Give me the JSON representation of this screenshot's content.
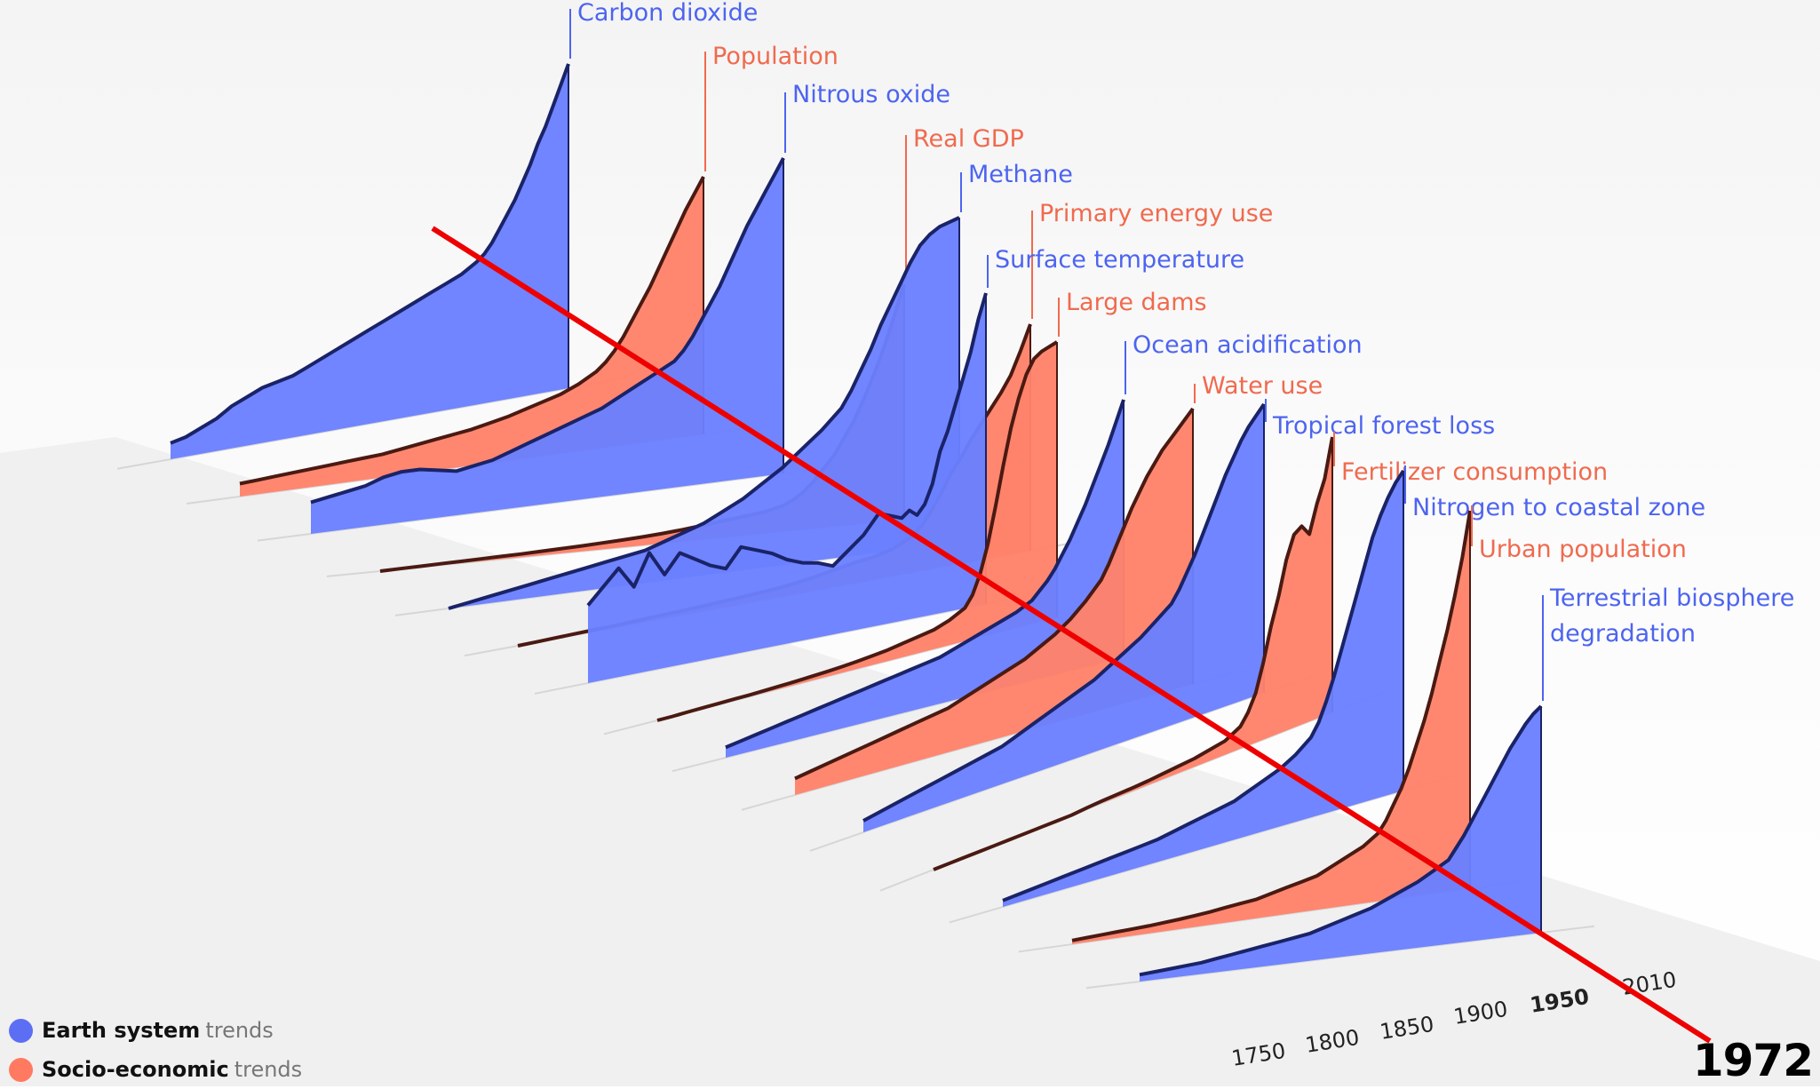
{
  "colors": {
    "earth_system": "#6a80ff",
    "socio_economic": "#ff826a",
    "earth_label": "#4d64f0",
    "socio_label": "#f06a4e",
    "annotation_line": "#ee0000"
  },
  "legend": {
    "earth": {
      "strong": "Earth system",
      "light": "trends"
    },
    "socio": {
      "strong": "Socio-economic",
      "light": "trends"
    }
  },
  "annotation": {
    "year_label": "1972"
  },
  "chart_data": {
    "type": "area",
    "title": "",
    "xlabel": "",
    "ylabel": "",
    "xlim": [
      1750,
      2010
    ],
    "x_ticks": [
      "1750",
      "1800",
      "1850",
      "1900",
      "1950",
      "2010"
    ],
    "highlighted_tick": "1950",
    "annotation_line_year": 1972,
    "x": [
      1750,
      1760,
      1770,
      1780,
      1790,
      1800,
      1810,
      1820,
      1830,
      1840,
      1850,
      1860,
      1870,
      1880,
      1890,
      1900,
      1910,
      1920,
      1930,
      1940,
      1950,
      1955,
      1960,
      1965,
      1970,
      1975,
      1980,
      1985,
      1990,
      1995,
      2000,
      2005,
      2010
    ],
    "series": [
      {
        "name": "Carbon dioxide",
        "group": "earth",
        "values": [
          0.05,
          0.06,
          0.08,
          0.1,
          0.13,
          0.15,
          0.17,
          0.18,
          0.19,
          0.21,
          0.23,
          0.25,
          0.27,
          0.29,
          0.31,
          0.33,
          0.35,
          0.37,
          0.39,
          0.41,
          0.44,
          0.46,
          0.49,
          0.53,
          0.57,
          0.61,
          0.66,
          0.71,
          0.77,
          0.82,
          0.88,
          0.94,
          1.0
        ]
      },
      {
        "name": "Population",
        "group": "socio",
        "values": [
          0.05,
          0.055,
          0.06,
          0.065,
          0.07,
          0.075,
          0.08,
          0.085,
          0.09,
          0.1,
          0.11,
          0.12,
          0.13,
          0.14,
          0.155,
          0.17,
          0.19,
          0.21,
          0.23,
          0.26,
          0.3,
          0.33,
          0.37,
          0.42,
          0.48,
          0.54,
          0.6,
          0.67,
          0.74,
          0.81,
          0.88,
          0.94,
          1.0
        ]
      },
      {
        "name": "Nitrous oxide",
        "group": "earth",
        "values": [
          0.1,
          0.11,
          0.12,
          0.13,
          0.15,
          0.16,
          0.16,
          0.15,
          0.14,
          0.15,
          0.16,
          0.18,
          0.2,
          0.22,
          0.24,
          0.26,
          0.28,
          0.31,
          0.34,
          0.37,
          0.4,
          0.43,
          0.47,
          0.52,
          0.57,
          0.62,
          0.68,
          0.74,
          0.8,
          0.85,
          0.9,
          0.95,
          1.0
        ]
      },
      {
        "name": "Real GDP",
        "group": "socio",
        "values": [
          0.0,
          0.002,
          0.004,
          0.006,
          0.008,
          0.01,
          0.012,
          0.014,
          0.017,
          0.02,
          0.023,
          0.027,
          0.031,
          0.036,
          0.042,
          0.05,
          0.06,
          0.07,
          0.08,
          0.09,
          0.11,
          0.13,
          0.16,
          0.2,
          0.25,
          0.3,
          0.37,
          0.44,
          0.53,
          0.63,
          0.74,
          0.87,
          1.0
        ]
      },
      {
        "name": "Methane",
        "group": "earth",
        "values": [
          0.0,
          0.01,
          0.02,
          0.03,
          0.04,
          0.05,
          0.06,
          0.07,
          0.08,
          0.09,
          0.1,
          0.12,
          0.14,
          0.16,
          0.19,
          0.22,
          0.26,
          0.3,
          0.35,
          0.4,
          0.46,
          0.51,
          0.57,
          0.63,
          0.7,
          0.76,
          0.82,
          0.88,
          0.93,
          0.96,
          0.98,
          0.99,
          1.0
        ]
      },
      {
        "name": "Primary energy use",
        "group": "socio",
        "values": [
          0.0,
          0.002,
          0.004,
          0.006,
          0.008,
          0.01,
          0.013,
          0.016,
          0.019,
          0.022,
          0.026,
          0.03,
          0.035,
          0.04,
          0.048,
          0.06,
          0.075,
          0.09,
          0.1,
          0.12,
          0.16,
          0.2,
          0.26,
          0.33,
          0.41,
          0.47,
          0.54,
          0.6,
          0.66,
          0.72,
          0.79,
          0.89,
          1.0
        ]
      },
      {
        "name": "Surface temperature",
        "group": "earth",
        "values": [
          0.25,
          0.3,
          0.35,
          0.28,
          0.38,
          0.3,
          0.36,
          0.33,
          0.3,
          0.28,
          0.34,
          0.32,
          0.3,
          0.27,
          0.25,
          0.24,
          0.22,
          0.26,
          0.3,
          0.36,
          0.34,
          0.33,
          0.35,
          0.33,
          0.36,
          0.42,
          0.52,
          0.58,
          0.66,
          0.74,
          0.82,
          0.92,
          1.0
        ]
      },
      {
        "name": "Large dams",
        "group": "socio",
        "values": [
          0.0,
          0.0,
          0.002,
          0.003,
          0.004,
          0.005,
          0.006,
          0.008,
          0.01,
          0.012,
          0.015,
          0.018,
          0.022,
          0.027,
          0.033,
          0.04,
          0.05,
          0.06,
          0.07,
          0.09,
          0.12,
          0.16,
          0.23,
          0.33,
          0.46,
          0.6,
          0.73,
          0.83,
          0.91,
          0.96,
          0.98,
          0.99,
          1.0
        ]
      },
      {
        "name": "Ocean acidification",
        "group": "earth",
        "values": [
          0.04,
          0.05,
          0.06,
          0.07,
          0.08,
          0.09,
          0.1,
          0.11,
          0.12,
          0.13,
          0.14,
          0.15,
          0.16,
          0.17,
          0.18,
          0.2,
          0.22,
          0.24,
          0.26,
          0.28,
          0.31,
          0.34,
          0.37,
          0.41,
          0.46,
          0.51,
          0.57,
          0.63,
          0.7,
          0.77,
          0.84,
          0.92,
          1.0
        ]
      },
      {
        "name": "Water use",
        "group": "socio",
        "values": [
          0.06,
          0.07,
          0.08,
          0.09,
          0.1,
          0.11,
          0.12,
          0.13,
          0.14,
          0.15,
          0.16,
          0.18,
          0.2,
          0.22,
          0.24,
          0.26,
          0.29,
          0.32,
          0.36,
          0.41,
          0.47,
          0.52,
          0.58,
          0.64,
          0.7,
          0.75,
          0.8,
          0.84,
          0.88,
          0.91,
          0.94,
          0.97,
          1.0
        ]
      },
      {
        "name": "Tropical forest loss",
        "group": "earth",
        "values": [
          0.04,
          0.05,
          0.06,
          0.07,
          0.08,
          0.09,
          0.1,
          0.11,
          0.12,
          0.13,
          0.15,
          0.17,
          0.19,
          0.21,
          0.23,
          0.25,
          0.28,
          0.31,
          0.34,
          0.38,
          0.42,
          0.46,
          0.51,
          0.56,
          0.62,
          0.68,
          0.74,
          0.8,
          0.85,
          0.9,
          0.94,
          0.97,
          1.0
        ]
      },
      {
        "name": "Fertilizer consumption",
        "group": "socio",
        "values": [
          0.0,
          0.0,
          0.0,
          0.0,
          0.0,
          0.0,
          0.0,
          0.0,
          0.0,
          0.0,
          0.005,
          0.008,
          0.01,
          0.012,
          0.015,
          0.02,
          0.025,
          0.03,
          0.04,
          0.05,
          0.08,
          0.12,
          0.18,
          0.28,
          0.4,
          0.5,
          0.62,
          0.7,
          0.72,
          0.68,
          0.78,
          0.86,
          1.0
        ]
      },
      {
        "name": "Nitrogen to coastal zone",
        "group": "earth",
        "values": [
          0.02,
          0.025,
          0.03,
          0.035,
          0.04,
          0.045,
          0.05,
          0.055,
          0.06,
          0.065,
          0.07,
          0.08,
          0.09,
          0.1,
          0.11,
          0.12,
          0.14,
          0.16,
          0.18,
          0.21,
          0.25,
          0.29,
          0.35,
          0.42,
          0.5,
          0.58,
          0.66,
          0.74,
          0.82,
          0.88,
          0.93,
          0.97,
          1.0
        ]
      },
      {
        "name": "Urban population",
        "group": "socio",
        "values": [
          0.01,
          0.012,
          0.014,
          0.016,
          0.018,
          0.02,
          0.023,
          0.026,
          0.03,
          0.034,
          0.04,
          0.045,
          0.05,
          0.06,
          0.07,
          0.08,
          0.09,
          0.11,
          0.13,
          0.15,
          0.18,
          0.21,
          0.25,
          0.29,
          0.34,
          0.4,
          0.46,
          0.53,
          0.61,
          0.69,
          0.78,
          0.88,
          1.0
        ]
      },
      {
        "name": "Terrestrial biosphere degradation",
        "group": "earth",
        "label_lines": [
          "Terrestrial biosphere",
          "degradation"
        ],
        "values": [
          0.03,
          0.035,
          0.04,
          0.045,
          0.05,
          0.06,
          0.07,
          0.08,
          0.09,
          0.1,
          0.11,
          0.12,
          0.14,
          0.16,
          0.18,
          0.2,
          0.23,
          0.26,
          0.29,
          0.33,
          0.37,
          0.42,
          0.47,
          0.53,
          0.59,
          0.65,
          0.71,
          0.77,
          0.83,
          0.88,
          0.93,
          0.97,
          1.0
        ]
      }
    ]
  }
}
